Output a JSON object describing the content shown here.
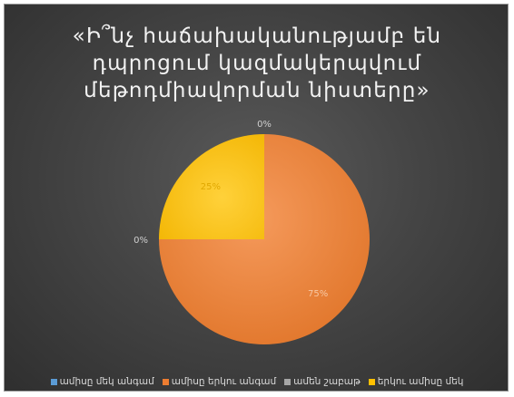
{
  "chart_data": {
    "type": "pie",
    "title": "«Ի՞նչ հաճախականությամբ են\nդպրոցում կազմակերպվում\nմեթոդմիավորման նիստերը»",
    "categories": [
      "ամիսը մեկ անգամ",
      "ամիսը երկու անգամ",
      "ամեն շաբաթ",
      "երկու ամիսը մեկ"
    ],
    "values": [
      0,
      75,
      0,
      25
    ],
    "data_labels": [
      "0%",
      "75%",
      "0%",
      "25%"
    ],
    "colors": [
      "#5b9bd5",
      "#ed7d31",
      "#a5a5a5",
      "#ffc000"
    ],
    "legend": "bottom"
  }
}
